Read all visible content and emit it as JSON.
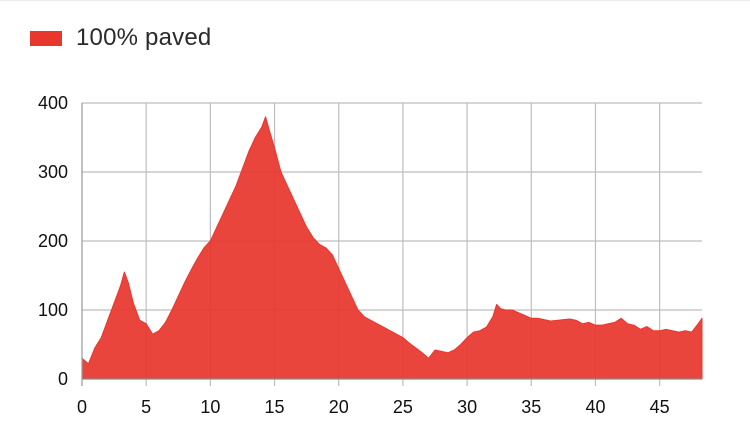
{
  "legend": {
    "label": "100% paved",
    "color": "#e8372d"
  },
  "chart_data": {
    "type": "area",
    "title": "",
    "xlabel": "",
    "ylabel": "",
    "xlim": [
      0,
      48.3
    ],
    "ylim": [
      0,
      400
    ],
    "x_ticks": [
      0,
      5,
      10,
      15,
      20,
      25,
      30,
      35,
      40,
      45
    ],
    "y_ticks": [
      0,
      100,
      200,
      300,
      400
    ],
    "grid": true,
    "legend_position": "top-left",
    "series": [
      {
        "name": "100% paved",
        "color": "#e8372d",
        "x": [
          0,
          0.5,
          1,
          1.5,
          2,
          2.5,
          3,
          3.3,
          3.6,
          4,
          4.5,
          5,
          5.5,
          6,
          6.5,
          7,
          7.5,
          8,
          8.5,
          9,
          9.5,
          10,
          10.5,
          11,
          11.5,
          12,
          12.5,
          13,
          13.5,
          14,
          14.3,
          14.6,
          15,
          15.5,
          16,
          16.5,
          17,
          17.5,
          18,
          18.5,
          19,
          19.5,
          20,
          20.5,
          21,
          21.5,
          22,
          22.5,
          23,
          23.5,
          24,
          24.5,
          25,
          25.5,
          26,
          26.5,
          27,
          27.5,
          28,
          28.5,
          29,
          29.5,
          30,
          30.5,
          31,
          31.5,
          32,
          32.3,
          32.6,
          33,
          33.5,
          34,
          34.5,
          35,
          35.5,
          36,
          36.5,
          37,
          37.5,
          38,
          38.5,
          39,
          39.5,
          40,
          40.5,
          41,
          41.5,
          42,
          42.5,
          43,
          43.5,
          44,
          44.5,
          45,
          45.5,
          46,
          46.5,
          47,
          47.5,
          48,
          48.3
        ],
        "values": [
          30,
          22,
          45,
          60,
          85,
          110,
          135,
          155,
          140,
          110,
          85,
          80,
          65,
          70,
          82,
          100,
          120,
          140,
          158,
          175,
          190,
          200,
          220,
          240,
          260,
          280,
          305,
          330,
          350,
          365,
          380,
          360,
          335,
          300,
          280,
          260,
          240,
          220,
          205,
          195,
          190,
          180,
          160,
          140,
          120,
          100,
          90,
          85,
          80,
          75,
          70,
          65,
          60,
          52,
          45,
          38,
          30,
          42,
          40,
          38,
          42,
          50,
          60,
          68,
          70,
          75,
          90,
          108,
          102,
          100,
          100,
          96,
          92,
          88,
          88,
          86,
          84,
          85,
          86,
          87,
          85,
          80,
          82,
          78,
          78,
          80,
          82,
          88,
          80,
          78,
          72,
          76,
          70,
          70,
          72,
          70,
          68,
          70,
          68,
          80,
          88
        ]
      }
    ]
  }
}
